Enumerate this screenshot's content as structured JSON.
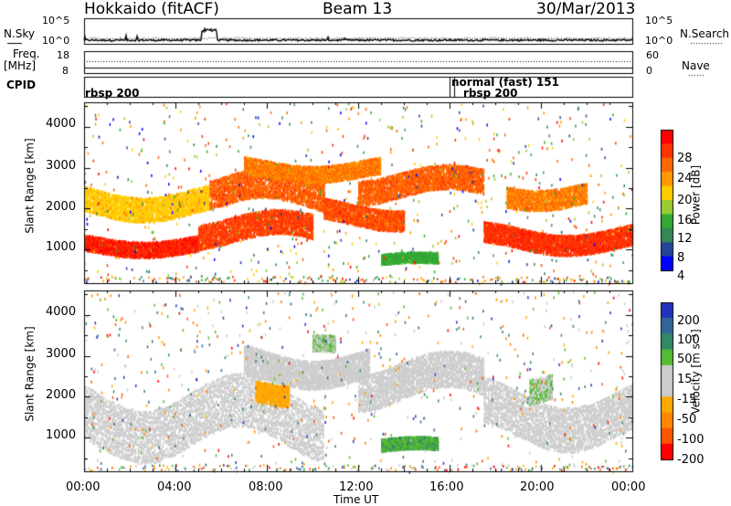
{
  "header": {
    "station": "Hokkaido (fitACF)",
    "beam": "Beam 13",
    "date": "30/Mar/2013"
  },
  "noise_panel": {
    "left_label": "N.Sky",
    "right_label": "N.Search",
    "left_ticks": [
      "10^5",
      "10^0"
    ],
    "right_ticks": [
      "10^5",
      "10^0"
    ]
  },
  "freq_panel": {
    "left_label_line1": "Freq.",
    "left_label_line2": "[MHz]",
    "right_label": "Nave",
    "left_ticks": [
      "18",
      "8"
    ],
    "right_ticks": [
      "60",
      "0"
    ]
  },
  "cpid_panel": {
    "label": "CPID",
    "entries": [
      {
        "time": 0.0,
        "text": "rbsp 200"
      },
      {
        "time": 16.0,
        "text": "normal (fast) 151"
      },
      {
        "time": 16.2,
        "text": "rbsp 200"
      }
    ]
  },
  "x_axis": {
    "label": "Time UT",
    "ticks": [
      "00:00",
      "04:00",
      "08:00",
      "12:00",
      "16:00",
      "20:00",
      "00:00"
    ]
  },
  "power_colorbar": {
    "label": "Power [dB]",
    "ticks": [
      "28",
      "24",
      "20",
      "16",
      "12",
      "8",
      "4"
    ],
    "colors": [
      "#ff0000",
      "#ff3300",
      "#ff6600",
      "#ff9900",
      "#ffcc00",
      "#99cc33",
      "#33aa33",
      "#338855",
      "#224499",
      "#0000ff"
    ]
  },
  "velocity_colorbar": {
    "label": "Velocity [m s⁻¹]",
    "ticks": [
      "200",
      "100",
      "50",
      "15",
      "-15",
      "-50",
      "-100",
      "-200"
    ],
    "colors": [
      "#2233bb",
      "#336699",
      "#338866",
      "#55bb33",
      "#cccccc",
      "#cccccc",
      "#ffaa00",
      "#ff8800",
      "#ff5500",
      "#ff0000"
    ]
  },
  "chart_data": [
    {
      "type": "heatmap",
      "title": "Power",
      "ylabel": "Slant Range [km]",
      "xlabel": "",
      "xlim": [
        0,
        24
      ],
      "ylim": [
        180,
        4600
      ],
      "yticks": [
        1000,
        2000,
        3000,
        4000
      ],
      "color_scale": [
        0,
        30
      ],
      "regions": [
        {
          "t0": 0.0,
          "t1": 5.0,
          "r_center": 1150,
          "r_width": 380,
          "value": 28
        },
        {
          "t0": 0.0,
          "t1": 5.5,
          "r_center": 2200,
          "r_width": 600,
          "value": 17
        },
        {
          "t0": 5.0,
          "t1": 10.0,
          "r_center": 1500,
          "r_width": 600,
          "value": 26
        },
        {
          "t0": 5.5,
          "t1": 10.5,
          "r_center": 2400,
          "r_width": 700,
          "value": 24
        },
        {
          "t0": 7.0,
          "t1": 13.0,
          "r_center": 3000,
          "r_width": 400,
          "value": 22
        },
        {
          "t0": 10.5,
          "t1": 14.0,
          "r_center": 1900,
          "r_width": 500,
          "value": 25
        },
        {
          "t0": 13.0,
          "t1": 15.5,
          "r_center": 750,
          "r_width": 250,
          "value": 10
        },
        {
          "t0": 12.0,
          "t1": 17.5,
          "r_center": 2600,
          "r_width": 600,
          "value": 24
        },
        {
          "t0": 17.5,
          "t1": 24.0,
          "r_center": 1300,
          "r_width": 500,
          "value": 27
        },
        {
          "t0": 18.5,
          "t1": 22.0,
          "r_center": 2400,
          "r_width": 500,
          "value": 22
        }
      ]
    },
    {
      "type": "heatmap",
      "title": "Velocity",
      "ylabel": "Slant Range [km]",
      "xlabel": "Time UT",
      "xlim": [
        0,
        24
      ],
      "ylim": [
        180,
        4600
      ],
      "yticks": [
        1000,
        2000,
        3000,
        4000
      ],
      "color_scale": [
        -200,
        200
      ],
      "regions": [
        {
          "t0": 0.0,
          "t1": 10.5,
          "r_center": 1500,
          "r_width": 1300,
          "value": 0
        },
        {
          "t0": 7.0,
          "t1": 12.5,
          "r_center": 2800,
          "r_width": 700,
          "value": 0
        },
        {
          "t0": 12.0,
          "t1": 17.5,
          "r_center": 2400,
          "r_width": 900,
          "value": 0
        },
        {
          "t0": 17.5,
          "t1": 24.0,
          "r_center": 1600,
          "r_width": 1100,
          "value": 0
        },
        {
          "t0": 7.5,
          "t1": 9.0,
          "r_center": 2200,
          "r_width": 500,
          "value": -70
        },
        {
          "t0": 10.0,
          "t1": 11.0,
          "r_center": 3200,
          "r_width": 400,
          "value": 40
        },
        {
          "t0": 13.0,
          "t1": 15.5,
          "r_center": 800,
          "r_width": 300,
          "value": 80
        },
        {
          "t0": 19.5,
          "t1": 20.5,
          "r_center": 2300,
          "r_width": 600,
          "value": 40
        }
      ]
    }
  ]
}
